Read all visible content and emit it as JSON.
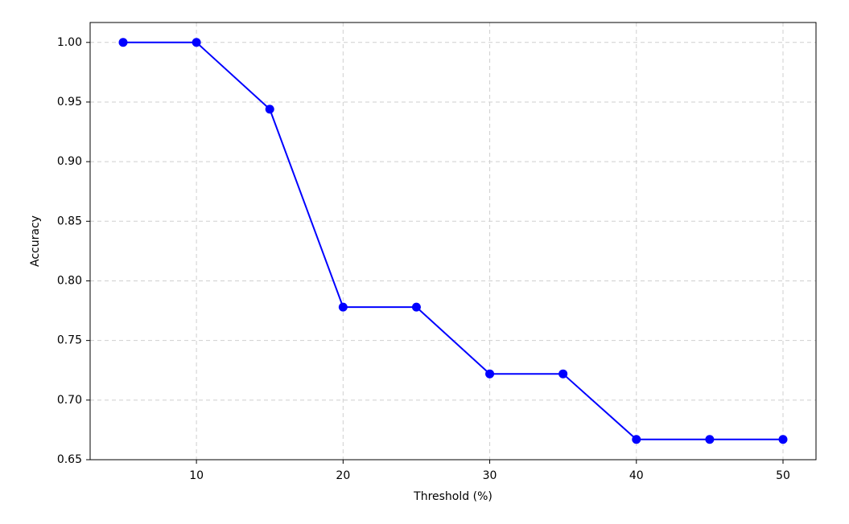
{
  "chart_data": {
    "type": "line",
    "x_label": "Threshold (%)",
    "y_label": "Accuracy",
    "x": [
      5,
      10,
      15,
      20,
      25,
      30,
      35,
      40,
      45,
      50
    ],
    "series": [
      {
        "color": "#0000ff",
        "values": [
          1.0,
          1.0,
          0.944,
          0.778,
          0.778,
          0.722,
          0.722,
          0.667,
          0.667,
          0.667
        ]
      }
    ],
    "xlim": [
      2.75,
      52.25
    ],
    "xticks": [
      10,
      20,
      30,
      40,
      50
    ],
    "ylim": [
      0.65,
      1.0167
    ],
    "yticks": [
      0.65,
      {
        "value": 0.7,
        "label": "0.70"
      },
      0.75,
      {
        "value": 0.8,
        "label": "0.80"
      },
      0.85,
      {
        "value": 0.9,
        "label": "0.90"
      },
      0.95,
      {
        "value": 1.0,
        "label": "1.00"
      }
    ],
    "grid": true
  }
}
